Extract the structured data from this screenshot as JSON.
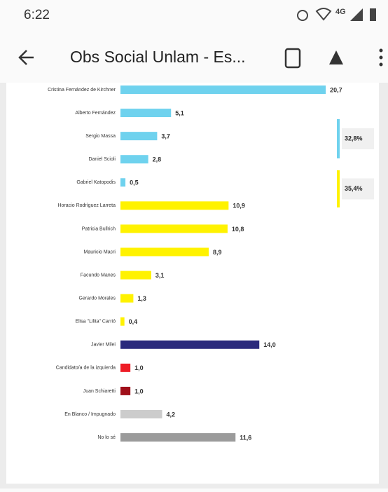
{
  "status_bar": {
    "time": "6:22",
    "network": "4G"
  },
  "toolbar": {
    "title": "Obs Social Unlam - Es..."
  },
  "chart_data": {
    "type": "hbar",
    "categories": [
      "Cristina Fernández de Kirchner",
      "Alberto Fernández",
      "Sergio Massa",
      "Daniel Scioli",
      "Gabriel Katopodis",
      "Horacio Rodríguez Larreta",
      "Patricia Bullrich",
      "Mauricio Macri",
      "Facundo Manes",
      "Gerardo Morales",
      "Elisa \"Lilita\" Carrió",
      "Javier Milei",
      "Candidato/a de la izquierda",
      "Juan Schiaretti",
      "En Blanco / Impugnado",
      "No lo sé"
    ],
    "values": [
      20.7,
      5.1,
      3.7,
      2.8,
      0.5,
      10.9,
      10.8,
      8.9,
      3.1,
      1.3,
      0.4,
      14.0,
      1.0,
      1.0,
      4.2,
      11.6
    ],
    "value_labels": [
      "20,7",
      "5,1",
      "3,7",
      "2,8",
      "0,5",
      "10,9",
      "10,8",
      "8,9",
      "3,1",
      "1,3",
      "0,4",
      "14,0",
      "1,0",
      "1,0",
      "4,2",
      "11,6"
    ],
    "colors": [
      "#6fd2ee",
      "#6fd2ee",
      "#6fd2ee",
      "#6fd2ee",
      "#6fd2ee",
      "#fff200",
      "#fff200",
      "#fff200",
      "#fff200",
      "#fff200",
      "#fff200",
      "#2b2a7c",
      "#ee1c25",
      "#a0101a",
      "#cccccc",
      "#9b9b9b"
    ],
    "annotations": [
      {
        "text": "32,8%",
        "color": "#6fd2ee"
      },
      {
        "text": "35,4%",
        "color": "#fff200"
      }
    ]
  }
}
